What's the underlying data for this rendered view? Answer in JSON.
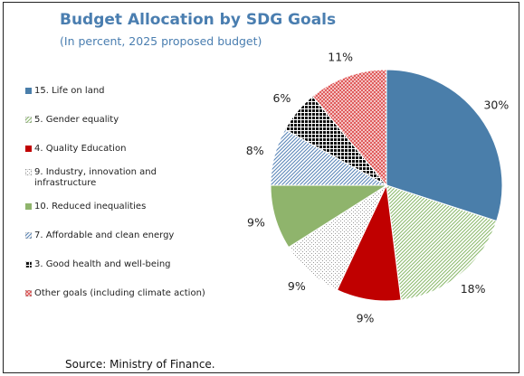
{
  "chart_data": {
    "type": "pie",
    "title": "Budget Allocation by SDG Goals",
    "subtitle": "(In percent, 2025 proposed budget)",
    "source": "Source: Ministry of Finance.",
    "categories": [
      "15. Life on land",
      "5. Gender equality",
      "4. Quality Education",
      "9. Industry, innovation and infrastructure",
      "10. Reduced inequalities",
      "7. Affordable and clean energy",
      "3. Good health and well-being",
      "Other goals (including climate action)"
    ],
    "values": [
      30,
      18,
      9,
      9,
      9,
      8,
      6,
      11
    ],
    "value_labels": [
      "30%",
      "18%",
      "9%",
      "9%",
      "9%",
      "8%",
      "6%",
      "11%"
    ],
    "colors": [
      "#4a7eaa",
      "#8dbb6e",
      "#c00000",
      "#9a9a9a",
      "#8fb46c",
      "#5a86b8",
      "#111111",
      "#e05a5a"
    ],
    "patterns": [
      "solid",
      "diagonal",
      "solid",
      "dots",
      "solid",
      "diagonal",
      "grid",
      "cross"
    ],
    "legend": "left"
  }
}
